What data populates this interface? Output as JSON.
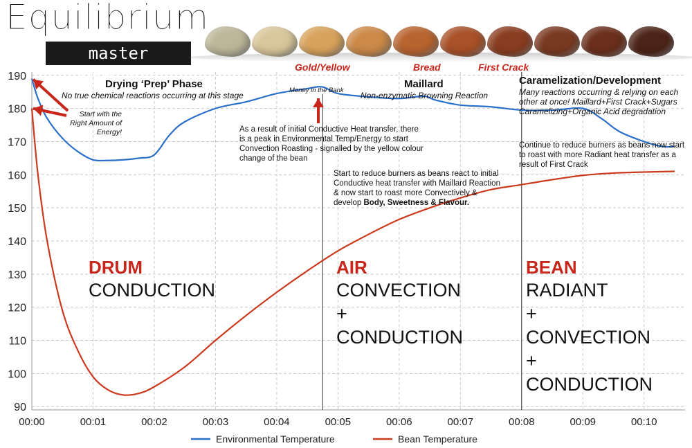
{
  "brand": {
    "title": "Equilibrium",
    "subtitle": "master roasters"
  },
  "stage_labels": {
    "gold": "Gold/Yellow",
    "bread": "Bread",
    "first_crack": "First Crack"
  },
  "phases": {
    "drying_title": "Drying ‘Prep’ Phase",
    "drying_note": "No true chemical reactions occurring at this stage",
    "money": "Money in the Bank",
    "maillard_title": "Maillard",
    "maillard_note": "Non-enzymatic Browning Reaction",
    "caramel_title": "Caramelization/Development",
    "caramel_note_1": "Many reactions occurring & relying on each",
    "caramel_note_2": "other at once! Maillard+First Crack+Sugars",
    "caramel_note_3": "Caramelizing+Organic Acid degradation"
  },
  "annotations": {
    "start_energy": "Start with the Right Amount of Energy!",
    "conductive_peak": "As a result of initial Conductive Heat transfer, there is a peak in Environmental Temp/Energy to start Convection Roasting - signalled by the yellow colour change of the bean",
    "reduce_burners_1_a": "Start to reduce burners as beans react to initial Conductive heat transfer with Maillard Reaction & now start to roast more Convectively & develop",
    "reduce_burners_1_b": "Body, Sweetness & Flavour.",
    "reduce_burners_2": "Continue to reduce burners as beans now start to roast with more Radiant heat transfer as a result of First Crack"
  },
  "zones": {
    "drum_head": "DRUM",
    "drum_body": "CONDUCTION",
    "air_head": "AIR",
    "air_body": "CONVECTION\n+\nCONDUCTION",
    "bean_head": "BEAN",
    "bean_body": "RADIANT\n+\nCONVECTION\n+\nCONDUCTION"
  },
  "colors": {
    "env": "#2a6fc9",
    "bean": "#cc3a1e",
    "accent": "#c8261b",
    "grid": "#c9c9c9"
  },
  "beans": [
    {
      "color": "#bdb79a"
    },
    {
      "color": "#d9c79b"
    },
    {
      "color": "#d8a35c"
    },
    {
      "color": "#cc8a49"
    },
    {
      "color": "#b8642f"
    },
    {
      "color": "#a95128"
    },
    {
      "color": "#8a3d20"
    },
    {
      "color": "#7a3a22"
    },
    {
      "color": "#6b2f1c"
    },
    {
      "color": "#4d2418"
    }
  ],
  "chart_data": {
    "type": "line",
    "xlabel": "",
    "ylabel": "",
    "xlim": [
      0,
      10.67
    ],
    "ylim": [
      89,
      191
    ],
    "x_ticks": [
      0,
      1,
      2,
      3,
      4,
      5,
      6,
      7,
      8,
      9,
      10
    ],
    "x_tick_labels": [
      "00:00",
      "00:01",
      "00:02",
      "00:03",
      "00:04",
      "00:05",
      "00:06",
      "00:07",
      "00:08",
      "00:09",
      "00:10"
    ],
    "y_ticks": [
      90,
      100,
      110,
      120,
      130,
      140,
      150,
      160,
      170,
      180,
      190
    ],
    "vlines": [
      4.75,
      8.0
    ],
    "legend": "bottom-center",
    "grid": true,
    "series": [
      {
        "name": "Environmental Temperature",
        "x": [
          0,
          0.1,
          0.25,
          0.5,
          0.75,
          1.0,
          1.25,
          1.5,
          1.75,
          2.0,
          2.25,
          2.5,
          3.0,
          3.5,
          4.0,
          4.5,
          4.75,
          5.0,
          5.5,
          6.0,
          6.4,
          6.6,
          7.0,
          7.5,
          8.0,
          8.5,
          9.0,
          9.3,
          9.6,
          10.0,
          10.3,
          10.5
        ],
        "values": [
          189,
          183,
          177,
          171,
          167,
          164.5,
          164.3,
          164.5,
          165,
          166,
          172,
          176,
          180,
          182,
          184.5,
          186,
          186.5,
          184.5,
          183.5,
          183,
          183.7,
          182.5,
          181,
          180.5,
          179.5,
          179.5,
          180,
          177,
          173,
          170,
          168.5,
          168.5
        ]
      },
      {
        "name": "Bean Temperature",
        "x": [
          0,
          0.1,
          0.25,
          0.5,
          0.75,
          1.0,
          1.25,
          1.5,
          1.75,
          2.0,
          2.5,
          3.0,
          3.5,
          4.0,
          4.5,
          5.0,
          5.5,
          6.0,
          6.5,
          7.0,
          7.5,
          8.0,
          8.5,
          9.0,
          9.5,
          10.0,
          10.5
        ],
        "values": [
          180,
          160,
          140,
          119,
          107,
          99,
          95,
          93.5,
          94,
          96,
          102,
          110,
          117.5,
          124.5,
          131,
          137,
          142,
          146.5,
          150,
          153,
          155.5,
          157,
          158.5,
          159.8,
          160.5,
          160.8,
          161
        ]
      }
    ]
  }
}
